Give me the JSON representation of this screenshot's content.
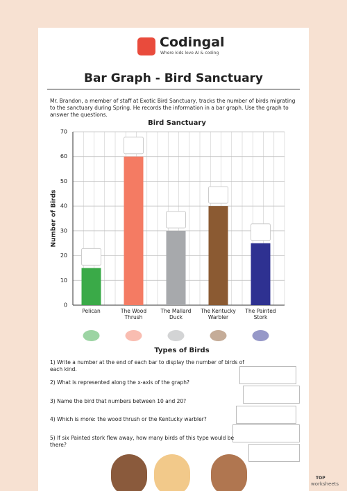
{
  "header": {
    "brand": "Codingal",
    "tagline": "Where kids love AI & coding",
    "title": "Bar Graph - Bird Sanctuary"
  },
  "intro": "Mr. Brandon, a member of staff at Exotic Bird Sanctuary, tracks the number of birds migrating to the sanctuary during Spring. He records the information in a bar graph. Use the graph to answer the questions.",
  "chart_data": {
    "type": "bar",
    "title": "Bird Sanctuary",
    "x_label": "Types of Birds",
    "y_label": "Number of Birds",
    "categories": [
      "Pelican",
      "The Wood Thrush",
      "The Mallard Duck",
      "The Kentucky Warbler",
      "The Painted Stork"
    ],
    "values": [
      15,
      60,
      30,
      40,
      25
    ],
    "colors": [
      "#3aaa48",
      "#f47b63",
      "#a7a9ac",
      "#8b5a32",
      "#2e3191"
    ],
    "ylim": [
      0,
      70
    ],
    "yticks": [
      0,
      10,
      20,
      30,
      40,
      50,
      60,
      70
    ],
    "grid": true
  },
  "questions": [
    "1)  Write a number at the end of each bar to display the number of birds of each kind.",
    "2)  What is represented along the x-axis of the graph?",
    "3)  Name the bird that numbers between 10 and 20?",
    "4)  Which is more:  the wood thrush or the Kentucky warbler?",
    "5)  If six Painted stork flew away, how many birds of this type would be there?"
  ],
  "footer": {
    "line1": "TOP",
    "line2": "worksheets"
  }
}
